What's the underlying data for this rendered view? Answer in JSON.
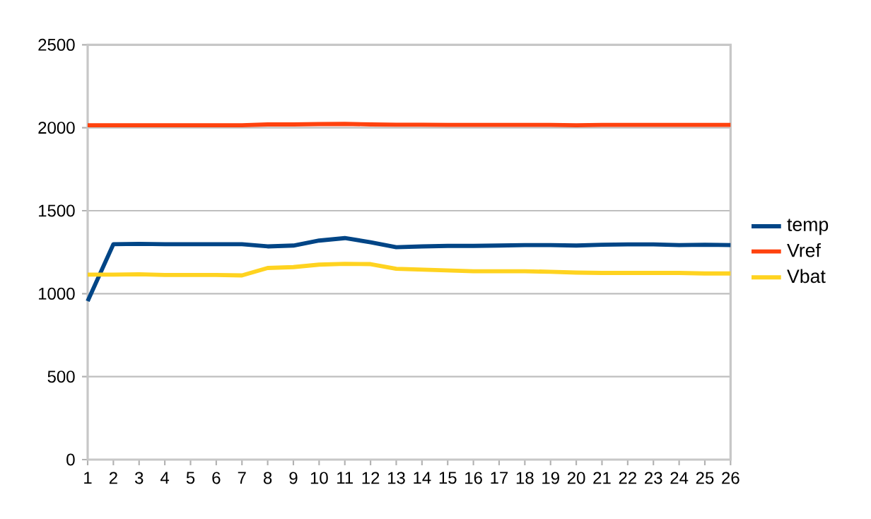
{
  "chart_data": {
    "type": "line",
    "categories": [
      "1",
      "2",
      "3",
      "4",
      "5",
      "6",
      "7",
      "8",
      "9",
      "10",
      "11",
      "12",
      "13",
      "14",
      "15",
      "16",
      "17",
      "18",
      "19",
      "20",
      "21",
      "22",
      "23",
      "24",
      "25",
      "26"
    ],
    "series": [
      {
        "name": "temp",
        "color": "#004586",
        "values": [
          955,
          1298,
          1300,
          1298,
          1298,
          1298,
          1298,
          1285,
          1290,
          1320,
          1335,
          1310,
          1280,
          1285,
          1288,
          1288,
          1290,
          1293,
          1293,
          1290,
          1295,
          1297,
          1297,
          1293,
          1295,
          1293
        ]
      },
      {
        "name": "Vref",
        "color": "#ff420e",
        "values": [
          2015,
          2015,
          2015,
          2015,
          2015,
          2015,
          2015,
          2020,
          2020,
          2022,
          2023,
          2020,
          2018,
          2018,
          2017,
          2017,
          2017,
          2017,
          2017,
          2015,
          2017,
          2017,
          2017,
          2017,
          2017,
          2017
        ]
      },
      {
        "name": "Vbat",
        "color": "#ffd320",
        "values": [
          1115,
          1115,
          1117,
          1113,
          1113,
          1113,
          1110,
          1155,
          1160,
          1175,
          1180,
          1178,
          1150,
          1145,
          1140,
          1135,
          1135,
          1135,
          1132,
          1127,
          1125,
          1125,
          1125,
          1125,
          1122,
          1122
        ]
      }
    ],
    "ylim": [
      0,
      2500
    ],
    "yticks": [
      0,
      500,
      1000,
      1500,
      2000,
      2500
    ],
    "grid": "y",
    "legend": "right"
  }
}
